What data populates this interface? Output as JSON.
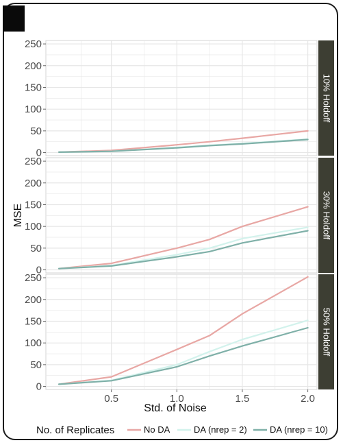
{
  "chart_data": {
    "type": "line",
    "xlabel": "Std. of Noise",
    "ylabel": "MSE",
    "xlim": [
      0.0,
      2.07
    ],
    "ylim": [
      -7,
      258
    ],
    "x_ticks": [
      0.5,
      1.0,
      1.5,
      2.0
    ],
    "x_tick_labels": [
      "0.5",
      "1.0",
      "1.5",
      "2.0"
    ],
    "y_ticks": [
      0,
      50,
      100,
      150,
      200,
      250
    ],
    "y_tick_labels": [
      "0",
      "50",
      "100",
      "150",
      "200",
      "250"
    ],
    "grid": true,
    "x": [
      0.1,
      0.5,
      1.0,
      1.25,
      1.5,
      2.0
    ],
    "legend": {
      "title": "No. of Replicates",
      "placement": "bottom",
      "entries": [
        "No DA",
        "DA (nrep = 2)",
        "DA (nrep = 10)"
      ]
    },
    "colors": {
      "No DA": "#e8a7a4",
      "DA (nrep = 2)": "#d2f2ec",
      "DA (nrep = 10)": "#7fb0a8"
    },
    "strip_color": "#3d3e33",
    "panel_background": "#ffffff",
    "grid_color": "#e6e6e6",
    "panels": [
      {
        "label": "10% Holdoff",
        "series": [
          {
            "name": "No DA",
            "values": [
              1,
              5,
              18,
              25,
              33,
              50
            ]
          },
          {
            "name": "DA (nrep = 2)",
            "values": [
              1,
              3,
              12,
              17,
              21,
              31
            ]
          },
          {
            "name": "DA (nrep = 10)",
            "values": [
              1,
              3,
              11,
              16,
              20,
              30
            ]
          }
        ]
      },
      {
        "label": "30% Holdoff",
        "series": [
          {
            "name": "No DA",
            "values": [
              3,
              15,
              50,
              70,
              100,
              145
            ]
          },
          {
            "name": "DA (nrep = 2)",
            "values": [
              3,
              10,
              35,
              50,
              72,
              98
            ]
          },
          {
            "name": "DA (nrep = 10)",
            "values": [
              3,
              9,
              30,
              42,
              62,
              90
            ]
          }
        ]
      },
      {
        "label": "50% Holdoff",
        "series": [
          {
            "name": "No DA",
            "values": [
              5,
              22,
              85,
              117,
              167,
              252
            ]
          },
          {
            "name": "DA (nrep = 2)",
            "values": [
              5,
              14,
              50,
              80,
              108,
              152
            ]
          },
          {
            "name": "DA (nrep = 10)",
            "values": [
              5,
              13,
              45,
              70,
              93,
              135
            ]
          }
        ]
      }
    ]
  }
}
